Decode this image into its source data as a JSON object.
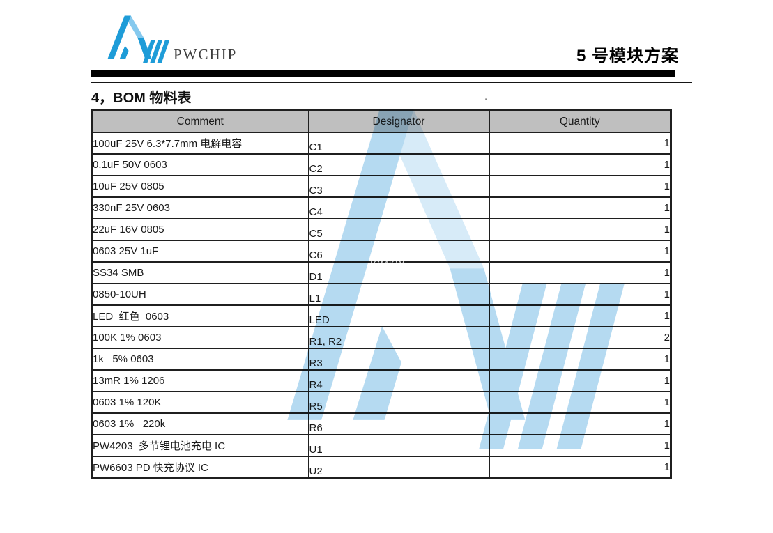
{
  "header": {
    "logo_text": "PWCHIP",
    "doc_title": "5 号模块方案"
  },
  "section": {
    "title": "4，BOM 物料表",
    "stray_dot": "."
  },
  "watermark": {
    "text": "ICMKW"
  },
  "table": {
    "columns": [
      "Comment",
      "Designator",
      "Quantity"
    ],
    "rows": [
      {
        "comment": "100uF 25V 6.3*7.7mm 电解电容",
        "designator": "C1",
        "quantity": "1"
      },
      {
        "comment": "0.1uF 50V 0603",
        "designator": "C2",
        "quantity": "1"
      },
      {
        "comment": "10uF 25V 0805",
        "designator": "C3",
        "quantity": "1"
      },
      {
        "comment": "330nF 25V 0603",
        "designator": "C4",
        "quantity": "1"
      },
      {
        "comment": "22uF 16V 0805",
        "designator": "C5",
        "quantity": "1"
      },
      {
        "comment": "0603 25V 1uF",
        "designator": "C6",
        "quantity": "1"
      },
      {
        "comment": "SS34 SMB",
        "designator": "D1",
        "quantity": "1"
      },
      {
        "comment": "0850-10UH",
        "designator": "L1",
        "quantity": "1"
      },
      {
        "comment": "LED  红色  0603",
        "designator": "LED",
        "quantity": "1"
      },
      {
        "comment": "100K 1% 0603",
        "designator": "R1, R2",
        "quantity": "2"
      },
      {
        "comment": "1k   5% 0603",
        "designator": "R3",
        "quantity": "1"
      },
      {
        "comment": "13mR 1% 1206",
        "designator": "R4",
        "quantity": "1"
      },
      {
        "comment": "0603 1% 120K",
        "designator": "R5",
        "quantity": "1"
      },
      {
        "comment": "0603 1%   220k",
        "designator": "R6",
        "quantity": "1"
      },
      {
        "comment": "PW4203  多节锂电池充电 IC",
        "designator": "U1",
        "quantity": "1"
      },
      {
        "comment": "PW6603 PD 快充协议 IC",
        "designator": "U2",
        "quantity": "1"
      }
    ]
  },
  "colors": {
    "logo_blue": "#1e9cd8",
    "logo_light_blue": "#85c9ee",
    "watermark_blue": "#b5daf1",
    "watermark_light_blue": "#d7ebf8",
    "table_header_gray": "#bfbfbf",
    "border_color": "#1f1f1f",
    "rule_black": "#000000"
  }
}
